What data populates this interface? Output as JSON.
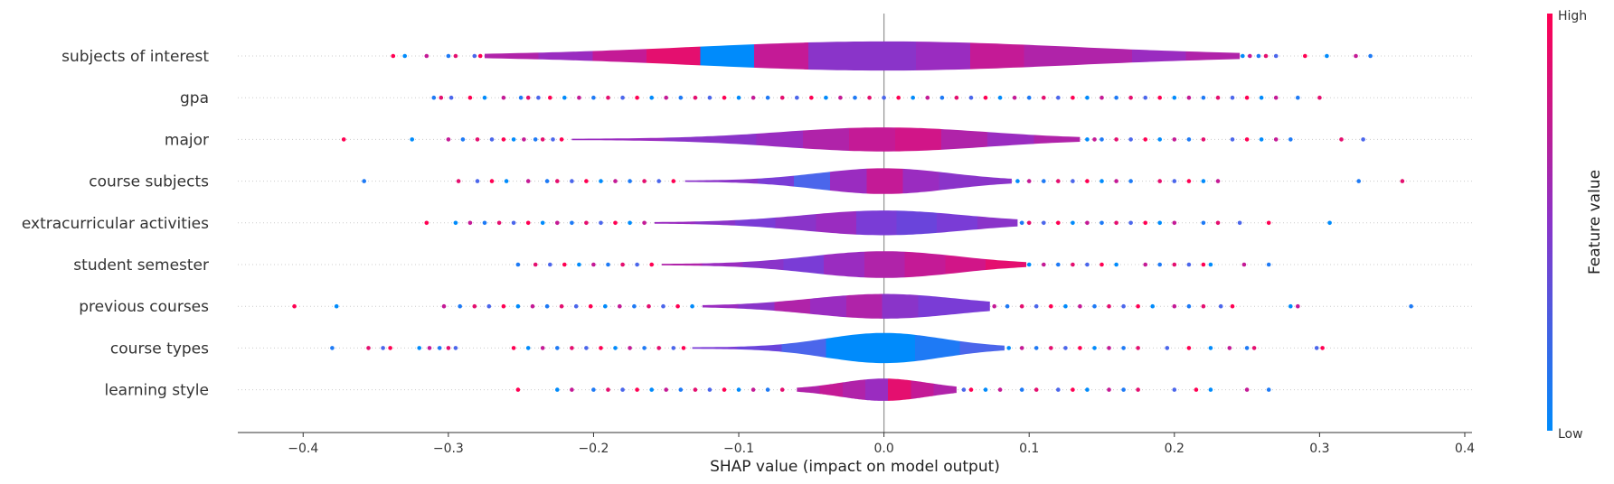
{
  "chart_data": {
    "type": "violin",
    "xlabel": "SHAP value (impact on model output)",
    "xlim": [
      -0.445,
      0.405
    ],
    "x_ticks": [
      -0.4,
      -0.3,
      -0.2,
      -0.1,
      0.0,
      0.1,
      0.2,
      0.3,
      0.4
    ],
    "x_tick_labels": [
      "−0.4",
      "−0.3",
      "−0.2",
      "−0.1",
      "0.0",
      "0.1",
      "0.2",
      "0.3",
      "0.4"
    ],
    "colorbar": {
      "label": "Feature value",
      "high_label": "High",
      "low_label": "Low",
      "high_color": "#ff0052",
      "low_color": "#008bfb"
    },
    "features": [
      {
        "name": "subjects of interest",
        "range": [
          -0.275,
          0.245
        ],
        "spread": 0.13,
        "thickness": 0.85,
        "colors": [
          "#b023a9",
          "#9a2cc0",
          "#c41a96",
          "#e40f6f",
          "#008bfb",
          "#c41a96",
          "#8a34c9",
          "#8a34c9",
          "#9a2cc0",
          "#c41a96",
          "#b023a9",
          "#b023a9",
          "#9a2cc0",
          "#b023a9"
        ],
        "left_points": [
          -0.338,
          -0.33,
          -0.315,
          -0.3,
          -0.295,
          -0.282,
          -0.278
        ],
        "right_points": [
          0.247,
          0.252,
          0.258,
          0.263,
          0.27,
          0.29,
          0.305,
          0.325,
          0.335
        ]
      },
      {
        "name": "gpa",
        "range": [
          -0.31,
          0.3
        ],
        "spread": 0,
        "thickness": 0,
        "colors": [],
        "left_points": [
          -0.31,
          -0.305,
          -0.298,
          -0.285,
          -0.275,
          -0.262,
          -0.25,
          -0.245,
          -0.238,
          -0.23,
          -0.22,
          -0.21,
          -0.2,
          -0.19,
          -0.18,
          -0.17,
          -0.16,
          -0.15,
          -0.14,
          -0.13,
          -0.12,
          -0.11,
          -0.1,
          -0.09,
          -0.08,
          -0.07,
          -0.06,
          -0.05,
          -0.04,
          -0.03,
          -0.02,
          -0.01
        ],
        "right_points": [
          0.0,
          0.01,
          0.02,
          0.03,
          0.04,
          0.05,
          0.06,
          0.07,
          0.08,
          0.09,
          0.1,
          0.11,
          0.12,
          0.13,
          0.14,
          0.15,
          0.16,
          0.17,
          0.18,
          0.19,
          0.2,
          0.21,
          0.22,
          0.23,
          0.24,
          0.25,
          0.26,
          0.27,
          0.285,
          0.3
        ]
      },
      {
        "name": "major",
        "range": [
          -0.215,
          0.135
        ],
        "spread": 0.07,
        "thickness": 0.7,
        "colors": [
          "#9a2cc0",
          "#9a2cc0",
          "#8a34c9",
          "#8a34c9",
          "#9a2cc0",
          "#b023a9",
          "#c41a96",
          "#d11588",
          "#b023a9",
          "#9a2cc0",
          "#b023a9"
        ],
        "left_points": [
          -0.372,
          -0.325,
          -0.3,
          -0.29,
          -0.28,
          -0.27,
          -0.262,
          -0.255,
          -0.248,
          -0.24,
          -0.235,
          -0.228,
          -0.222
        ],
        "right_points": [
          0.14,
          0.145,
          0.15,
          0.16,
          0.17,
          0.18,
          0.19,
          0.2,
          0.21,
          0.22,
          0.24,
          0.25,
          0.26,
          0.27,
          0.28,
          0.315,
          0.33
        ]
      },
      {
        "name": "course subjects",
        "range": [
          -0.137,
          0.088
        ],
        "spread": 0.045,
        "thickness": 0.75,
        "colors": [
          "#8a34c9",
          "#8a34c9",
          "#7a3cd6",
          "#4b66eb",
          "#9a2cc0",
          "#c41a96",
          "#9a2cc0",
          "#8a34c9",
          "#8a34c9"
        ],
        "left_points": [
          -0.358,
          -0.293,
          -0.28,
          -0.27,
          -0.26,
          -0.245,
          -0.232,
          -0.225,
          -0.215,
          -0.205,
          -0.195,
          -0.185,
          -0.175,
          -0.165,
          -0.155,
          -0.145
        ],
        "right_points": [
          0.092,
          0.1,
          0.11,
          0.12,
          0.13,
          0.14,
          0.15,
          0.16,
          0.17,
          0.19,
          0.2,
          0.21,
          0.22,
          0.23,
          0.327,
          0.357
        ]
      },
      {
        "name": "extracurricular activities",
        "range": [
          -0.158,
          0.092
        ],
        "spread": 0.055,
        "thickness": 0.72,
        "colors": [
          "#9a2cc0",
          "#8a34c9",
          "#7a3cd6",
          "#8a34c9",
          "#9a2cc0",
          "#7a3cd6",
          "#6a44db",
          "#7a3cd6",
          "#8a34c9"
        ],
        "left_points": [
          -0.315,
          -0.295,
          -0.285,
          -0.275,
          -0.265,
          -0.255,
          -0.245,
          -0.235,
          -0.225,
          -0.215,
          -0.205,
          -0.195,
          -0.185,
          -0.175,
          -0.165
        ],
        "right_points": [
          0.095,
          0.1,
          0.11,
          0.12,
          0.13,
          0.14,
          0.15,
          0.16,
          0.17,
          0.18,
          0.19,
          0.2,
          0.22,
          0.23,
          0.245,
          0.265,
          0.307
        ]
      },
      {
        "name": "student semester",
        "range": [
          -0.153,
          0.098
        ],
        "spread": 0.05,
        "thickness": 0.78,
        "colors": [
          "#b023a9",
          "#9a2cc0",
          "#8a34c9",
          "#7a3cd6",
          "#9a2cc0",
          "#b023a9",
          "#c41a96",
          "#d11588",
          "#e40f6f"
        ],
        "left_points": [
          -0.252,
          -0.24,
          -0.23,
          -0.22,
          -0.21,
          -0.2,
          -0.19,
          -0.18,
          -0.17,
          -0.16
        ],
        "right_points": [
          0.1,
          0.11,
          0.12,
          0.13,
          0.14,
          0.15,
          0.16,
          0.18,
          0.19,
          0.2,
          0.21,
          0.22,
          0.225,
          0.248,
          0.265
        ]
      },
      {
        "name": "previous courses",
        "range": [
          -0.125,
          0.073
        ],
        "spread": 0.05,
        "thickness": 0.72,
        "colors": [
          "#9a2cc0",
          "#8a34c9",
          "#b023a9",
          "#9a2cc0",
          "#b023a9",
          "#8a34c9",
          "#7a3cd6",
          "#7a3cd6"
        ],
        "left_points": [
          -0.406,
          -0.377,
          -0.303,
          -0.292,
          -0.282,
          -0.272,
          -0.262,
          -0.252,
          -0.242,
          -0.232,
          -0.222,
          -0.212,
          -0.202,
          -0.192,
          -0.182,
          -0.172,
          -0.162,
          -0.152,
          -0.142,
          -0.132
        ],
        "right_points": [
          0.076,
          0.085,
          0.095,
          0.105,
          0.115,
          0.125,
          0.135,
          0.145,
          0.155,
          0.165,
          0.175,
          0.185,
          0.2,
          0.21,
          0.22,
          0.232,
          0.24,
          0.28,
          0.285,
          0.363
        ]
      },
      {
        "name": "course types",
        "range": [
          -0.132,
          0.083
        ],
        "spread": 0.04,
        "thickness": 0.88,
        "colors": [
          "#7a3cd6",
          "#6a44db",
          "#4b66eb",
          "#008bfb",
          "#008bfb",
          "#1e7af5",
          "#4b66eb"
        ],
        "left_points": [
          -0.38,
          -0.355,
          -0.345,
          -0.34,
          -0.32,
          -0.313,
          -0.306,
          -0.3,
          -0.295,
          -0.255,
          -0.245,
          -0.235,
          -0.225,
          -0.215,
          -0.205,
          -0.195,
          -0.185,
          -0.175,
          -0.165,
          -0.155,
          -0.145,
          -0.138
        ],
        "right_points": [
          0.086,
          0.095,
          0.105,
          0.115,
          0.125,
          0.135,
          0.145,
          0.155,
          0.165,
          0.175,
          0.195,
          0.21,
          0.225,
          0.238,
          0.25,
          0.255,
          0.298,
          0.302
        ]
      },
      {
        "name": "learning style",
        "range": [
          -0.06,
          0.05
        ],
        "spread": 0.03,
        "thickness": 0.65,
        "colors": [
          "#b023a9",
          "#c41a96",
          "#b023a9",
          "#9a2cc0",
          "#e40f6f",
          "#c41a96",
          "#b023a9"
        ],
        "left_points": [
          -0.252,
          -0.225,
          -0.215,
          -0.2,
          -0.19,
          -0.18,
          -0.17,
          -0.16,
          -0.15,
          -0.14,
          -0.13,
          -0.12,
          -0.11,
          -0.1,
          -0.09,
          -0.08,
          -0.07
        ],
        "right_points": [
          0.055,
          0.06,
          0.07,
          0.08,
          0.095,
          0.105,
          0.12,
          0.13,
          0.14,
          0.155,
          0.165,
          0.175,
          0.2,
          0.215,
          0.225,
          0.25,
          0.265
        ]
      }
    ]
  }
}
